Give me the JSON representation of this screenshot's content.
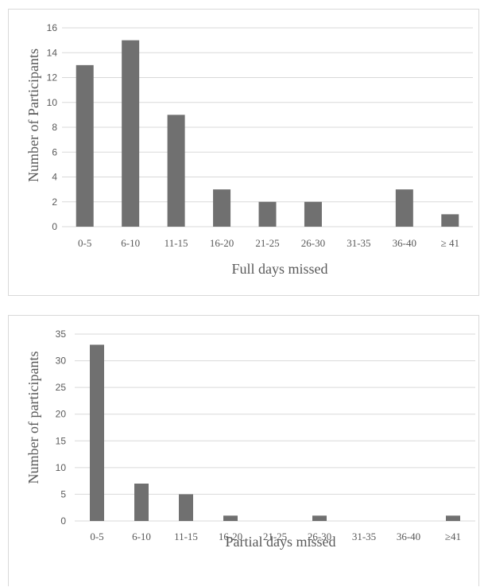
{
  "chart_data": [
    {
      "type": "bar",
      "categories": [
        "0-5",
        "6-10",
        "11-15",
        "16-20",
        "21-25",
        "26-30",
        "31-35",
        "36-40",
        "≥ 41"
      ],
      "values": [
        13,
        15,
        9,
        3,
        2,
        2,
        0,
        3,
        1
      ],
      "xlabel": "Full days missed",
      "ylabel": "Number of Participants",
      "ylim": [
        0,
        16
      ],
      "yticks": [
        0,
        2,
        4,
        6,
        8,
        10,
        12,
        14,
        16
      ],
      "grid": true,
      "bar_color": "#707070"
    },
    {
      "type": "bar",
      "categories": [
        "0-5",
        "6-10",
        "11-15",
        "16-20",
        "21-25",
        "26-30",
        "31-35",
        "36-40",
        "≥41"
      ],
      "values": [
        33,
        7,
        5,
        1,
        0,
        1,
        0,
        0,
        1
      ],
      "xlabel": "Partial days missed",
      "ylabel": "Number of participants",
      "ylim": [
        0,
        35
      ],
      "yticks": [
        0,
        5,
        10,
        15,
        20,
        25,
        30,
        35
      ],
      "grid": true,
      "bar_color": "#707070"
    }
  ]
}
